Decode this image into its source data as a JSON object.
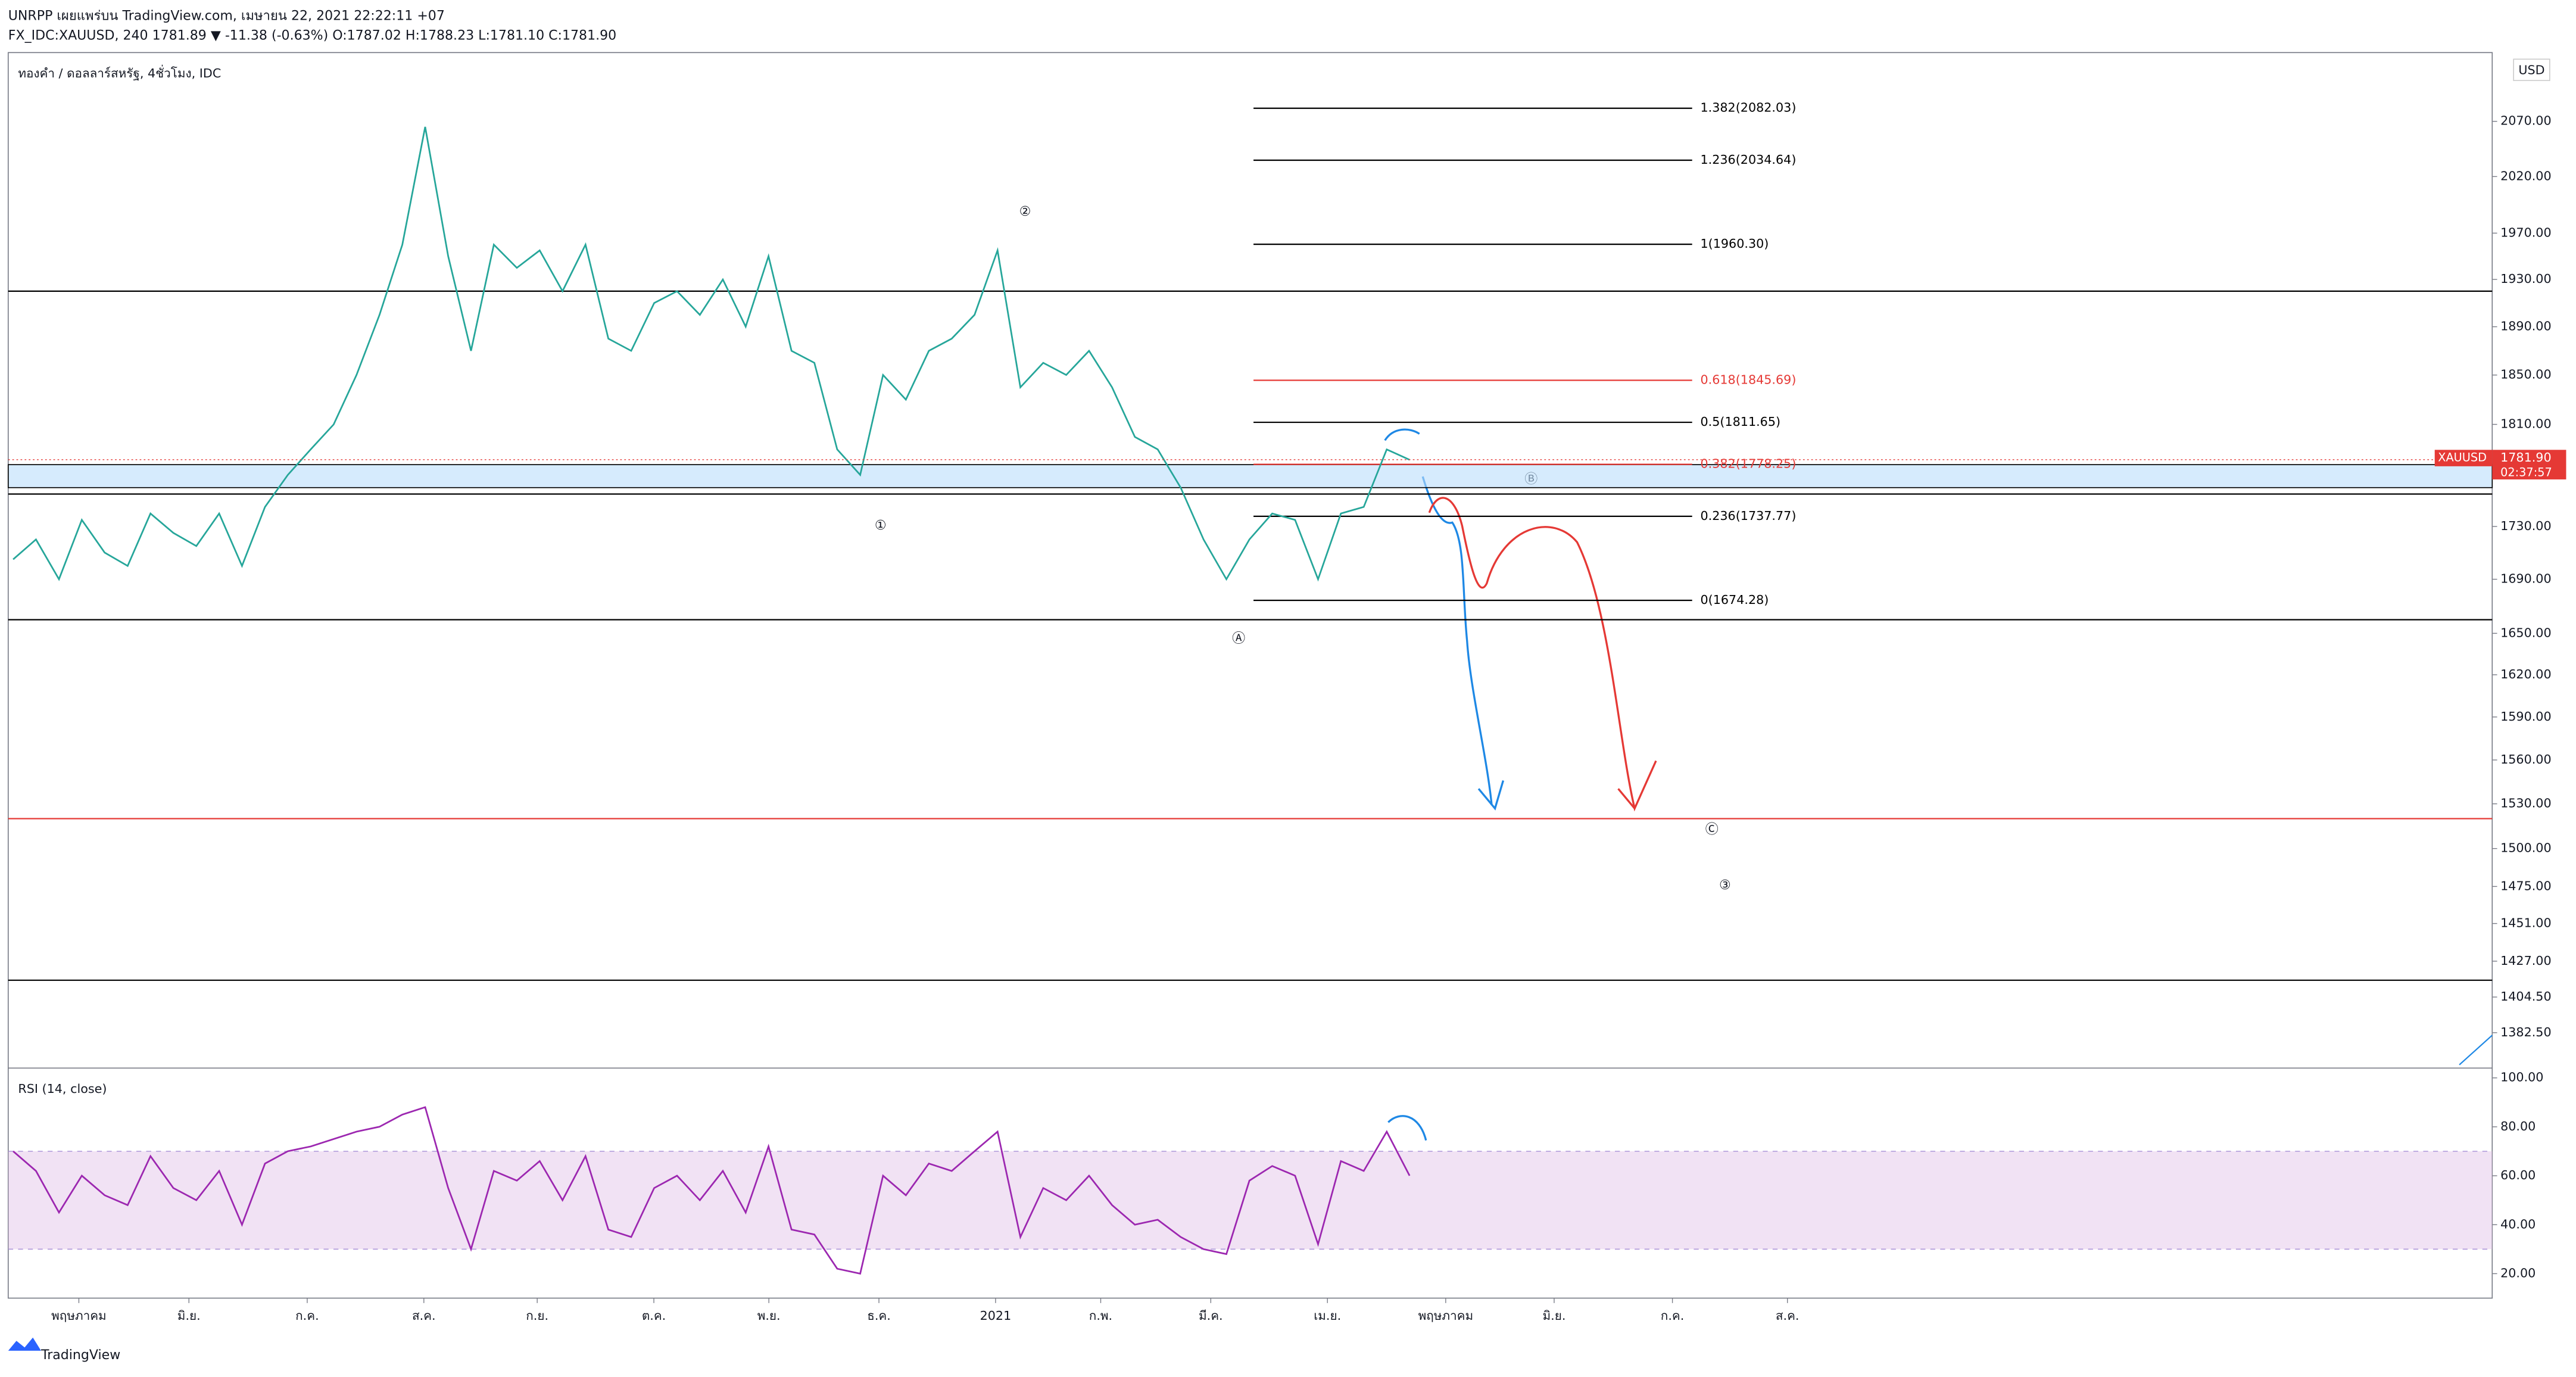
{
  "header": {
    "line1": "UNRPP เผยแพร่บน TradingView.com, เมษายน 22, 2021 22:22:11 +07",
    "line2": "FX_IDC:XAUUSD, 240 1781.89 ▼ -11.38 (-0.63%) O:1787.02 H:1788.23 L:1781.10 C:1781.90"
  },
  "brand": "TradingView",
  "currency": "USD",
  "chart_data": [
    {
      "type": "line",
      "title": "ทองคำ / ดอลลาร์สหรัฐ, 4ชั่วโมง, IDC",
      "color": "#26a69a",
      "log_scale": true,
      "values": [
        1705,
        1720,
        1690,
        1735,
        1710,
        1700,
        1740,
        1725,
        1715,
        1740,
        1700,
        1745,
        1770,
        1790,
        1810,
        1850,
        1900,
        1960,
        2065,
        1950,
        1870,
        1960,
        1940,
        1955,
        1920,
        1960,
        1880,
        1870,
        1910,
        1920,
        1900,
        1930,
        1890,
        1950,
        1870,
        1860,
        1790,
        1770,
        1850,
        1830,
        1870,
        1880,
        1900,
        1955,
        1840,
        1860,
        1850,
        1870,
        1840,
        1800,
        1790,
        1760,
        1720,
        1690,
        1720,
        1740,
        1735,
        1690,
        1740,
        1745,
        1790,
        1781.9
      ],
      "ylim": [
        1361,
        2134
      ],
      "yticks": [
        {
          "value": 2070,
          "label": "2070.00"
        },
        {
          "value": 2020,
          "label": "2020.00"
        },
        {
          "value": 1970,
          "label": "1970.00"
        },
        {
          "value": 1930,
          "label": "1930.00"
        },
        {
          "value": 1890,
          "label": "1890.00"
        },
        {
          "value": 1850,
          "label": "1850.00"
        },
        {
          "value": 1810,
          "label": "1810.00"
        },
        {
          "value": 1730,
          "label": "1730.00"
        },
        {
          "value": 1690,
          "label": "1690.00"
        },
        {
          "value": 1650,
          "label": "1650.00"
        },
        {
          "value": 1620,
          "label": "1620.00"
        },
        {
          "value": 1590,
          "label": "1590.00"
        },
        {
          "value": 1560,
          "label": "1560.00"
        },
        {
          "value": 1530,
          "label": "1530.00"
        },
        {
          "value": 1500,
          "label": "1500.00"
        },
        {
          "value": 1475,
          "label": "1475.00"
        },
        {
          "value": 1451,
          "label": "1451.00"
        },
        {
          "value": 1427,
          "label": "1427.00"
        },
        {
          "value": 1404.5,
          "label": "1404.50"
        },
        {
          "value": 1382.5,
          "label": "1382.50"
        }
      ],
      "hlines": [
        {
          "value": 1920,
          "color": "#000000"
        },
        {
          "value": 1755,
          "color": "#000000"
        },
        {
          "value": 1660,
          "color": "#000000"
        },
        {
          "value": 1520,
          "color": "#e53935"
        },
        {
          "value": 1415,
          "color": "#000000"
        }
      ],
      "zone": [
        1760,
        1778
      ],
      "fib": [
        {
          "label": "1.382(2082.03)",
          "value": 2082.03,
          "color": "#000000"
        },
        {
          "label": "1.236(2034.64)",
          "value": 2034.64,
          "color": "#000000"
        },
        {
          "label": "1(1960.30)",
          "value": 1960.3,
          "color": "#000000"
        },
        {
          "label": "0.618(1845.69)",
          "value": 1845.69,
          "color": "#e53935"
        },
        {
          "label": "0.5(1811.65)",
          "value": 1811.65,
          "color": "#000000"
        },
        {
          "label": "0.382(1778.25)",
          "value": 1778.25,
          "color": "#e53935"
        },
        {
          "label": "0.236(1737.77)",
          "value": 1737.77,
          "color": "#000000"
        },
        {
          "label": "0(1674.28)",
          "value": 1674.28,
          "color": "#000000"
        }
      ],
      "last": {
        "value": 1781.9,
        "label": "1781.90",
        "symbol": "XAUUSD",
        "countdown": "02:37:57"
      },
      "annotations": [
        "①",
        "②",
        "Ⓐ",
        "Ⓑ",
        "Ⓒ",
        "③"
      ]
    },
    {
      "type": "line",
      "title": "RSI (14, close)",
      "color": "#9c27b0",
      "values": [
        70,
        62,
        45,
        60,
        52,
        48,
        68,
        55,
        50,
        62,
        40,
        65,
        70,
        72,
        75,
        78,
        80,
        85,
        88,
        55,
        30,
        62,
        58,
        66,
        50,
        68,
        38,
        35,
        55,
        60,
        50,
        62,
        45,
        72,
        38,
        36,
        22,
        20,
        60,
        52,
        65,
        62,
        70,
        78,
        35,
        55,
        50,
        60,
        48,
        40,
        42,
        35,
        30,
        28,
        58,
        64,
        60,
        32,
        66,
        62,
        78,
        60
      ],
      "ylim": [
        10,
        104
      ],
      "yticks": [
        {
          "value": 20,
          "label": "20.00"
        },
        {
          "value": 40,
          "label": "40.00"
        },
        {
          "value": 60,
          "label": "60.00"
        },
        {
          "value": 80,
          "label": "80.00"
        },
        {
          "value": 100,
          "label": "100.00"
        }
      ],
      "band": [
        30,
        70
      ]
    },
    {
      "type": "xaxis",
      "categories": [
        "พฤษภาคม",
        "มิ.ย.",
        "ก.ค.",
        "ส.ค.",
        "ก.ย.",
        "ต.ค.",
        "พ.ย.",
        "ธ.ค.",
        "2021",
        "ก.พ.",
        "มี.ค.",
        "เม.ย.",
        "พฤษภาคม",
        "มิ.ย.",
        "ก.ค.",
        "ส.ค."
      ]
    }
  ]
}
